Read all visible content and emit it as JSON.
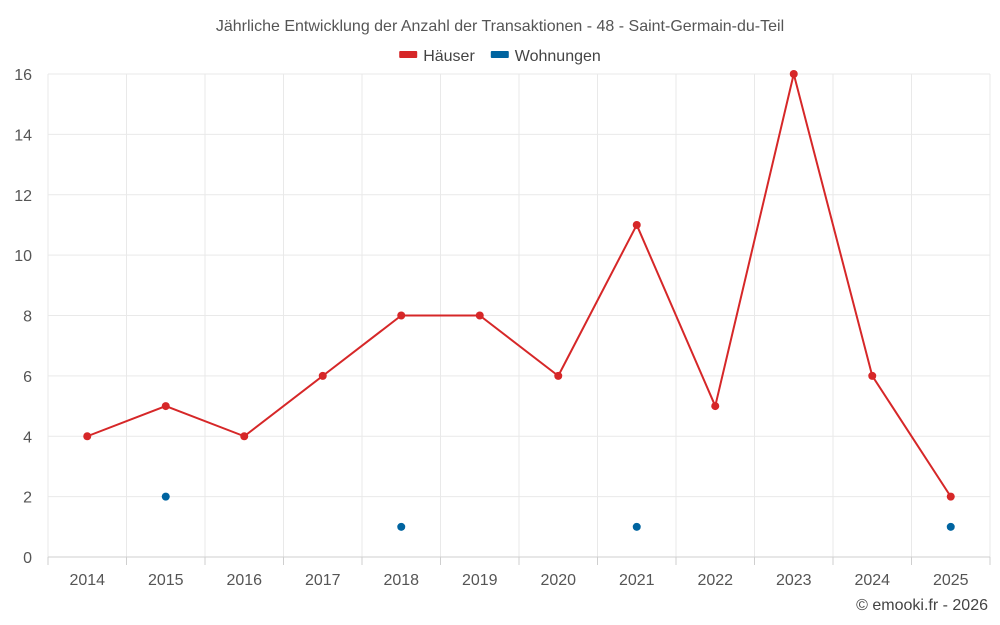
{
  "chart_data": {
    "type": "line",
    "title": "Jährliche Entwicklung der Anzahl der Transaktionen - 48 - Saint-Germain-du-Teil",
    "categories": [
      "2014",
      "2015",
      "2016",
      "2017",
      "2018",
      "2019",
      "2020",
      "2021",
      "2022",
      "2023",
      "2024",
      "2025"
    ],
    "series": [
      {
        "name": "Häuser",
        "color": "#d62728",
        "style": "line-with-markers",
        "values": [
          4,
          5,
          4,
          6,
          8,
          8,
          6,
          11,
          5,
          16,
          6,
          2
        ]
      },
      {
        "name": "Wohnungen",
        "color": "#0064a0",
        "style": "markers-only",
        "values": [
          null,
          2,
          null,
          null,
          1,
          null,
          null,
          1,
          null,
          null,
          null,
          1
        ]
      }
    ],
    "ylim": [
      0,
      16
    ],
    "yticks": [
      0,
      2,
      4,
      6,
      8,
      10,
      12,
      14,
      16
    ],
    "xlabel": "",
    "ylabel": "",
    "grid": true,
    "legend_position": "top-center"
  },
  "credit": "© emooki.fr - 2026"
}
